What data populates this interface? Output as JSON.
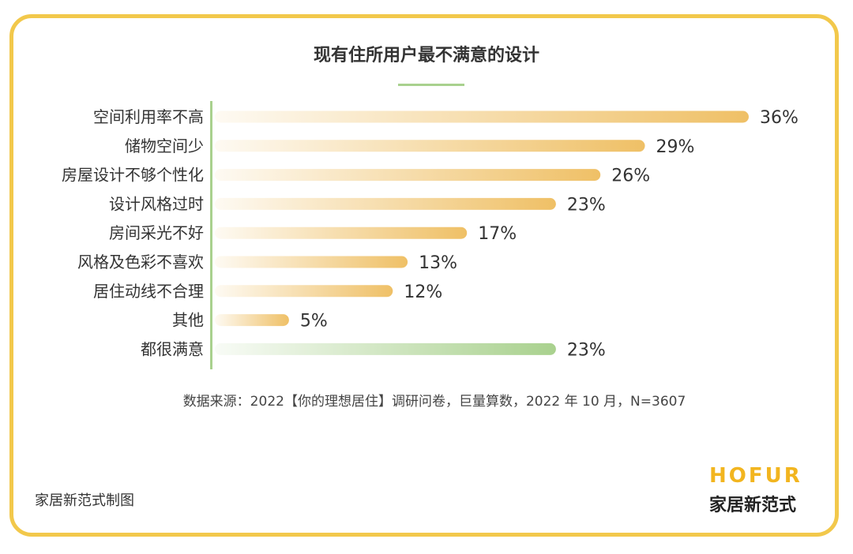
{
  "title": "现有住所用户最不满意的设计",
  "source": "数据来源：2022【你的理想居住】调研问卷，巨量算数，2022 年 10 月，N=3607",
  "credit": "家居新范式制图",
  "logo": {
    "en": "HOFUR",
    "cn": "家居新范式"
  },
  "colors": {
    "frame": "#f2c84b",
    "bar_orange": "#efc066",
    "bar_green": "#a9d18e",
    "logo_yellow": "#f2b51f"
  },
  "chart_data": {
    "type": "bar",
    "orientation": "horizontal",
    "categories": [
      "空间利用率不高",
      "储物空间少",
      "房屋设计不够个性化",
      "设计风格过时",
      "房间采光不好",
      "风格及色彩不喜欢",
      "居住动线不合理",
      "其他",
      "都很满意"
    ],
    "values": [
      36,
      29,
      26,
      23,
      17,
      13,
      12,
      5,
      23
    ],
    "value_labels": [
      "36%",
      "29%",
      "26%",
      "23%",
      "17%",
      "13%",
      "12%",
      "5%",
      "23%"
    ],
    "bar_colors": [
      "#efc066",
      "#efc066",
      "#efc066",
      "#efc066",
      "#efc066",
      "#efc066",
      "#efc066",
      "#efc066",
      "#a9d18e"
    ],
    "xlim": [
      0,
      36
    ],
    "grid": false,
    "legend": "none"
  }
}
